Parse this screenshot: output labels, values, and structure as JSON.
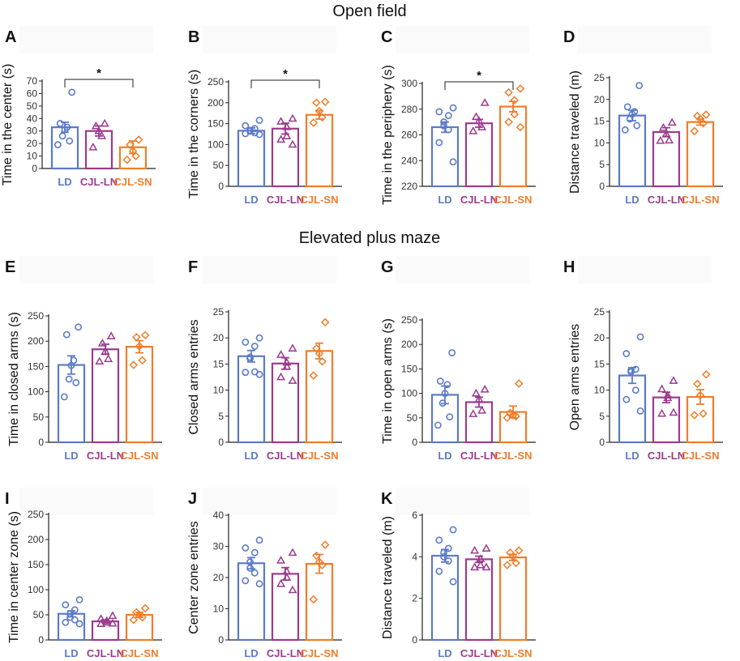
{
  "figure": {
    "section_titles": [
      "Open field",
      "Elevated plus maze"
    ]
  },
  "colors": {
    "LD": "#5b7bc9",
    "CJL-LN": "#9c3b8e",
    "CJL-SN": "#f07d2a"
  },
  "chart_data": [
    {
      "panel": "A",
      "type": "bar",
      "ylabel": "Time in the center (s)",
      "categories": [
        "LD",
        "CJL-LN",
        "CJL-SN"
      ],
      "ylim": [
        0,
        70
      ],
      "yticks": [
        0,
        10,
        20,
        30,
        40,
        50,
        60,
        70
      ],
      "means": [
        33,
        30,
        17
      ],
      "sem": [
        4,
        4,
        5
      ],
      "points": [
        [
          61,
          36,
          33,
          31,
          26,
          22,
          19
        ],
        [
          36,
          34,
          30,
          26,
          17
        ],
        [
          23,
          19,
          14,
          10,
          7
        ]
      ],
      "significance": {
        "from": 0,
        "to": 2,
        "label": "*"
      }
    },
    {
      "panel": "B",
      "type": "bar",
      "ylabel": "Time in the corners (s)",
      "categories": [
        "LD",
        "CJL-LN",
        "CJL-SN"
      ],
      "ylim": [
        0,
        250
      ],
      "yticks": [
        0,
        50,
        100,
        150,
        200,
        250
      ],
      "means": [
        133,
        138,
        171
      ],
      "sem": [
        7,
        13,
        10
      ],
      "points": [
        [
          158,
          145,
          138,
          134,
          132,
          128,
          126,
          124
        ],
        [
          162,
          155,
          142,
          120,
          112,
          100
        ],
        [
          202,
          200,
          180,
          165,
          152
        ]
      ],
      "significance": {
        "from": 0,
        "to": 2,
        "label": "*"
      }
    },
    {
      "panel": "C",
      "type": "bar",
      "ylabel": "Time in the periphery (s)",
      "categories": [
        "LD",
        "CJL-LN",
        "CJL-SN"
      ],
      "ylim": [
        220,
        300
      ],
      "yticks": [
        220,
        240,
        260,
        280,
        300
      ],
      "means": [
        266,
        269,
        282
      ],
      "sem": [
        4,
        3,
        4
      ],
      "points": [
        [
          281,
          278,
          275,
          270,
          267,
          264,
          254,
          239
        ],
        [
          285,
          274,
          271,
          266,
          263
        ],
        [
          296,
          293,
          287,
          276,
          270,
          266
        ]
      ],
      "significance": {
        "from": 0,
        "to": 2,
        "label": "*"
      }
    },
    {
      "panel": "D",
      "type": "bar",
      "ylabel": "Distance traveled (m)",
      "categories": [
        "LD",
        "CJL-LN",
        "CJL-SN"
      ],
      "ylim": [
        0,
        25
      ],
      "yticks": [
        0,
        5,
        10,
        15,
        20,
        25
      ],
      "means": [
        16.3,
        12.5,
        14.8
      ],
      "sem": [
        1.2,
        1.0,
        0.7
      ],
      "points": [
        [
          23.2,
          18.3,
          17.2,
          16.6,
          15.5,
          14.0,
          13.0
        ],
        [
          14.7,
          13.5,
          12.0,
          10.6,
          10.5
        ],
        [
          16.5,
          16.2,
          15.5,
          14.5,
          12.7
        ]
      ],
      "significance": null
    },
    {
      "panel": "E",
      "type": "bar",
      "ylabel": "Time in closed arms (s)",
      "categories": [
        "LD",
        "CJL-LN",
        "CJL-SN"
      ],
      "ylim": [
        0,
        250
      ],
      "yticks": [
        0,
        50,
        100,
        150,
        200,
        250
      ],
      "means": [
        153,
        184,
        189
      ],
      "sem": [
        18,
        10,
        12
      ],
      "points": [
        [
          228,
          213,
          162,
          152,
          125,
          118,
          90
        ],
        [
          210,
          196,
          180,
          165,
          160
        ],
        [
          212,
          208,
          190,
          162,
          153
        ]
      ],
      "significance": null
    },
    {
      "panel": "F",
      "type": "bar",
      "ylabel": "Closed arms entries",
      "categories": [
        "LD",
        "CJL-LN",
        "CJL-SN"
      ],
      "ylim": [
        0,
        25
      ],
      "yticks": [
        0,
        5,
        10,
        15,
        20,
        25
      ],
      "means": [
        16.5,
        15.1,
        17.5
      ],
      "sem": [
        1.1,
        1.1,
        1.5
      ],
      "points": [
        [
          20.0,
          19.2,
          18.4,
          16.3,
          16.0,
          13.5,
          13.4,
          13.0
        ],
        [
          18.0,
          16.8,
          15.3,
          14.5,
          12.5,
          11.8
        ],
        [
          23.0,
          18.0,
          17.0,
          15.5,
          12.8
        ]
      ],
      "significance": null
    },
    {
      "panel": "G",
      "type": "bar",
      "ylabel": "Time in open arms (s)",
      "categories": [
        "LD",
        "CJL-LN",
        "CJL-SN"
      ],
      "ylim": [
        0,
        250
      ],
      "yticks": [
        0,
        50,
        100,
        150,
        200,
        250
      ],
      "means": [
        97,
        82,
        62
      ],
      "sem": [
        18,
        10,
        12
      ],
      "points": [
        [
          183,
          125,
          118,
          100,
          80,
          52,
          35
        ],
        [
          108,
          100,
          88,
          65,
          58
        ],
        [
          120,
          60,
          55,
          53,
          50
        ]
      ],
      "significance": null
    },
    {
      "panel": "H",
      "type": "bar",
      "ylabel": "Open arms entries",
      "categories": [
        "LD",
        "CJL-LN",
        "CJL-SN"
      ],
      "ylim": [
        0,
        25
      ],
      "yticks": [
        0,
        5,
        10,
        15,
        20,
        25
      ],
      "means": [
        12.8,
        8.6,
        8.7
      ],
      "sem": [
        1.5,
        1.0,
        1.4
      ],
      "points": [
        [
          20.2,
          17.0,
          14.0,
          13.8,
          13.5,
          10.0,
          8.2,
          6.0
        ],
        [
          11.8,
          10.2,
          9.0,
          8.5,
          5.5,
          5.7
        ],
        [
          13.0,
          11.2,
          9.0,
          5.5,
          5.2
        ]
      ],
      "significance": null
    },
    {
      "panel": "I",
      "type": "bar",
      "ylabel": "Time in center zone (s)",
      "categories": [
        "LD",
        "CJL-LN",
        "CJL-SN"
      ],
      "ylim": [
        0,
        250
      ],
      "yticks": [
        0,
        50,
        100,
        150,
        200,
        250
      ],
      "means": [
        52,
        37,
        50
      ],
      "sem": [
        6,
        3,
        5
      ],
      "points": [
        [
          80,
          70,
          60,
          52,
          45,
          40,
          35,
          32
        ],
        [
          48,
          42,
          38,
          35,
          32,
          33
        ],
        [
          63,
          55,
          50,
          45,
          40
        ]
      ],
      "significance": null
    },
    {
      "panel": "J",
      "type": "bar",
      "ylabel": "Center zone entries",
      "categories": [
        "LD",
        "CJL-LN",
        "CJL-SN"
      ],
      "ylim": [
        0,
        40
      ],
      "yticks": [
        0,
        10,
        20,
        30,
        40
      ],
      "means": [
        24.6,
        21.2,
        24.4
      ],
      "sem": [
        1.8,
        2.0,
        3.0
      ],
      "points": [
        [
          32.0,
          29.5,
          28.0,
          25.0,
          23.0,
          21.5,
          19.0,
          18.0
        ],
        [
          28.0,
          25.5,
          22.0,
          20.0,
          18.0,
          16.0
        ],
        [
          30.5,
          27.0,
          25.0,
          24.0,
          13.0
        ]
      ],
      "significance": null
    },
    {
      "panel": "K",
      "type": "bar",
      "ylabel": "Distance traveled (m)",
      "categories": [
        "LD",
        "CJL-LN",
        "CJL-SN"
      ],
      "ylim": [
        0,
        6
      ],
      "yticks": [
        0,
        2,
        4,
        6
      ],
      "means": [
        4.05,
        3.88,
        3.97
      ],
      "sem": [
        0.3,
        0.15,
        0.15
      ],
      "points": [
        [
          5.3,
          4.8,
          4.4,
          4.2,
          4.0,
          3.8,
          3.3,
          2.8
        ],
        [
          4.4,
          4.3,
          3.9,
          3.6,
          3.5,
          3.5
        ],
        [
          4.3,
          4.2,
          4.0,
          3.7,
          3.6
        ]
      ],
      "significance": null
    }
  ]
}
